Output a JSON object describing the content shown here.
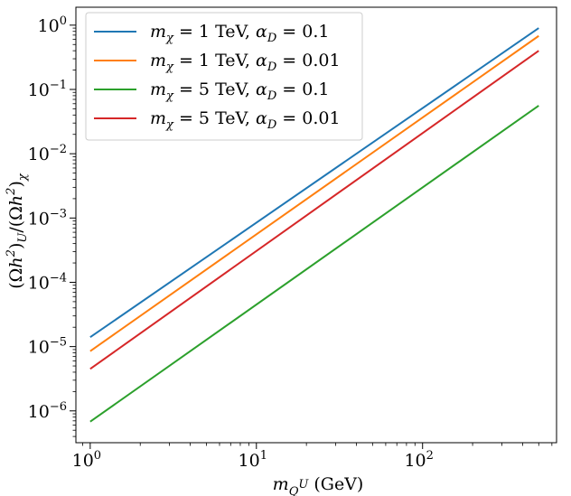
{
  "chart_data": {
    "type": "line",
    "title": "",
    "xlabel": "m_{Q^U} (GeV)",
    "ylabel": "(Ωh²)_U/(Ωh²)_χ",
    "xscale": "log",
    "yscale": "log",
    "xlim": [
      0.82,
      640
    ],
    "ylim": [
      3.2e-07,
      1.9
    ],
    "grid": false,
    "legend_position": "top-left",
    "xlabel_parts": {
      "var": "m",
      "sub": "Q",
      "subsup": "U",
      "unit": "(GeV)"
    },
    "ylabel_parts": {
      "open": "(",
      "omega": "Ω",
      "h": "h",
      "sup": "2",
      "close": ")",
      "sub1": "U",
      "slash": "/",
      "sub2": "χ"
    },
    "x_ticks": [
      {
        "value": 1,
        "base": "10",
        "exp": "0"
      },
      {
        "value": 10,
        "base": "10",
        "exp": "1"
      },
      {
        "value": 100,
        "base": "10",
        "exp": "2"
      }
    ],
    "y_ticks": [
      {
        "value": 1e-06,
        "base": "10",
        "exp": "−6"
      },
      {
        "value": 1e-05,
        "base": "10",
        "exp": "−5"
      },
      {
        "value": 0.0001,
        "base": "10",
        "exp": "−4"
      },
      {
        "value": 0.001,
        "base": "10",
        "exp": "−3"
      },
      {
        "value": 0.01,
        "base": "10",
        "exp": "−2"
      },
      {
        "value": 0.1,
        "base": "10",
        "exp": "−1"
      },
      {
        "value": 1,
        "base": "10",
        "exp": "0"
      }
    ],
    "series": [
      {
        "name": "m_χ = 1 TeV, α_D = 0.1",
        "label_parts": {
          "mass": "1",
          "unit": "TeV",
          "alpha": "0.1"
        },
        "color": "#1f77b4",
        "x": [
          1,
          500
        ],
        "values": [
          1.4e-05,
          0.9
        ]
      },
      {
        "name": "m_χ = 1 TeV, α_D = 0.01",
        "label_parts": {
          "mass": "1",
          "unit": "TeV",
          "alpha": "0.01"
        },
        "color": "#ff7f0e",
        "x": [
          1,
          500
        ],
        "values": [
          8.5e-06,
          0.68
        ]
      },
      {
        "name": "m_χ = 5 TeV, α_D = 0.1",
        "label_parts": {
          "mass": "5",
          "unit": "TeV",
          "alpha": "0.1"
        },
        "color": "#2ca02c",
        "x": [
          1,
          500
        ],
        "values": [
          6.8e-07,
          0.056
        ]
      },
      {
        "name": "m_χ = 5 TeV, α_D = 0.01",
        "label_parts": {
          "mass": "5",
          "unit": "TeV",
          "alpha": "0.01"
        },
        "color": "#d62728",
        "x": [
          1,
          500
        ],
        "values": [
          4.5e-06,
          0.4
        ]
      }
    ]
  }
}
